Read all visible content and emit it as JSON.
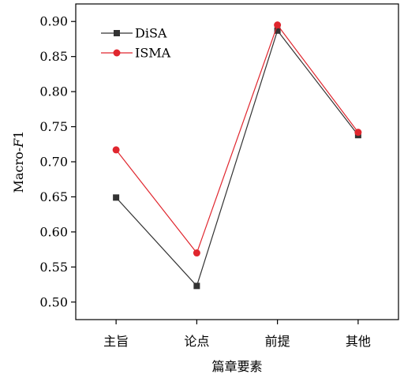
{
  "chart_data": {
    "type": "line",
    "categories": [
      "主旨",
      "论点",
      "前提",
      "其他"
    ],
    "xlabel": "篇章要素",
    "ylabel_main": "Macro-",
    "ylabel_italic": "F",
    "ylabel_sub": "1",
    "ylim": [
      0.475,
      0.925
    ],
    "yticks": [
      "0.50",
      "0.55",
      "0.60",
      "0.65",
      "0.70",
      "0.75",
      "0.80",
      "0.85",
      "0.90"
    ],
    "grid": false,
    "legend_position": "top-left",
    "series": [
      {
        "name": "DiSA",
        "values": [
          0.649,
          0.523,
          0.887,
          0.738
        ],
        "color": "#333333",
        "marker": "square"
      },
      {
        "name": "ISMA",
        "values": [
          0.717,
          0.57,
          0.895,
          0.742
        ],
        "color": "#e0262e",
        "marker": "circle"
      }
    ]
  }
}
